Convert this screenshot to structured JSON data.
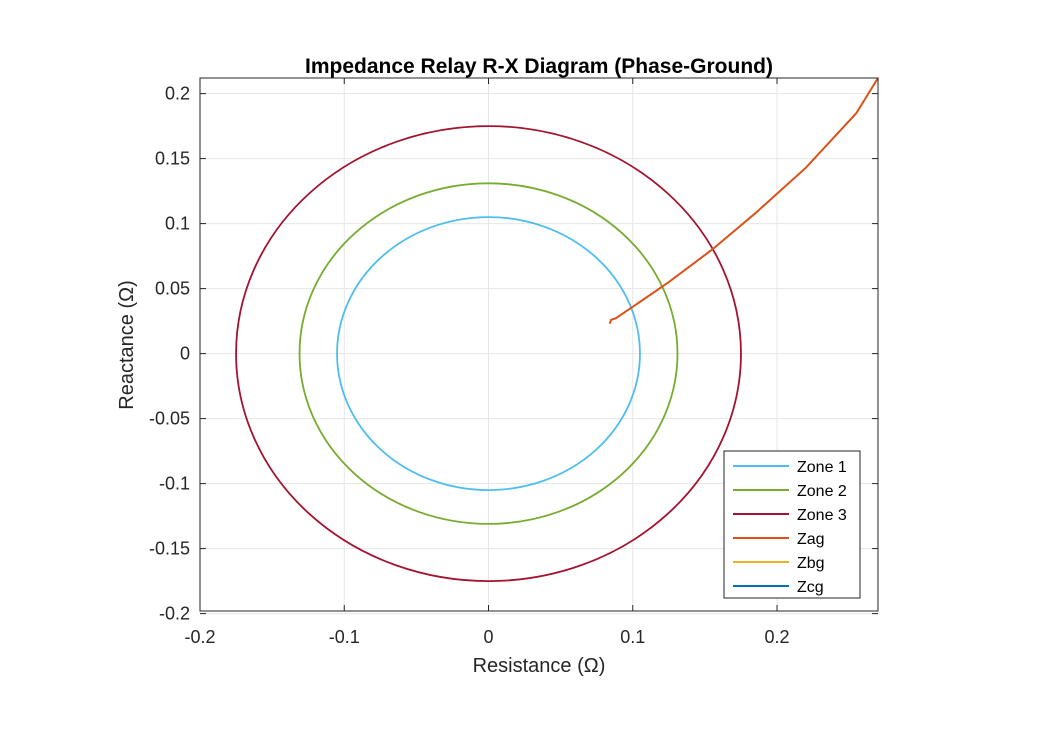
{
  "chart_data": {
    "type": "line",
    "title": "Impedance Relay R-X Diagram (Phase-Ground)",
    "xlabel": "Resistance (Ω)",
    "ylabel": "Reactance (Ω)",
    "xlim": [
      -0.2,
      0.27
    ],
    "ylim": [
      -0.198,
      0.212
    ],
    "xticks": [
      -0.2,
      -0.1,
      0,
      0.1,
      0.2
    ],
    "xtick_labels": [
      "-0.2",
      "-0.1",
      "0",
      "0.1",
      "0.2"
    ],
    "yticks": [
      -0.2,
      -0.15,
      -0.1,
      -0.05,
      0,
      0.05,
      0.1,
      0.15,
      0.2
    ],
    "ytick_labels": [
      "-0.2",
      "-0.15",
      "-0.1",
      "-0.05",
      "0",
      "0.05",
      "0.1",
      "0.15",
      "0.2"
    ],
    "grid": true,
    "legend_position": "bottom-right",
    "series": [
      {
        "name": "Zone 1",
        "kind": "circle",
        "center": [
          0,
          0
        ],
        "radius": 0.105,
        "color": "#4DBEEE"
      },
      {
        "name": "Zone 2",
        "kind": "circle",
        "center": [
          0,
          0
        ],
        "radius": 0.131,
        "color": "#77AC30"
      },
      {
        "name": "Zone 3",
        "kind": "circle",
        "center": [
          0,
          0
        ],
        "radius": 0.175,
        "color": "#A2142F"
      },
      {
        "name": "Zag",
        "kind": "path",
        "color": "#D95319",
        "x": [
          0.084,
          0.085,
          0.088,
          0.1,
          0.125,
          0.155,
          0.185,
          0.22,
          0.255,
          0.27
        ],
        "y": [
          0.023,
          0.026,
          0.027,
          0.036,
          0.055,
          0.08,
          0.108,
          0.143,
          0.185,
          0.212
        ]
      },
      {
        "name": "Zbg",
        "kind": "path",
        "color": "#EDB120",
        "x": [],
        "y": []
      },
      {
        "name": "Zcg",
        "kind": "path",
        "color": "#0072BD",
        "x": [],
        "y": []
      }
    ]
  }
}
